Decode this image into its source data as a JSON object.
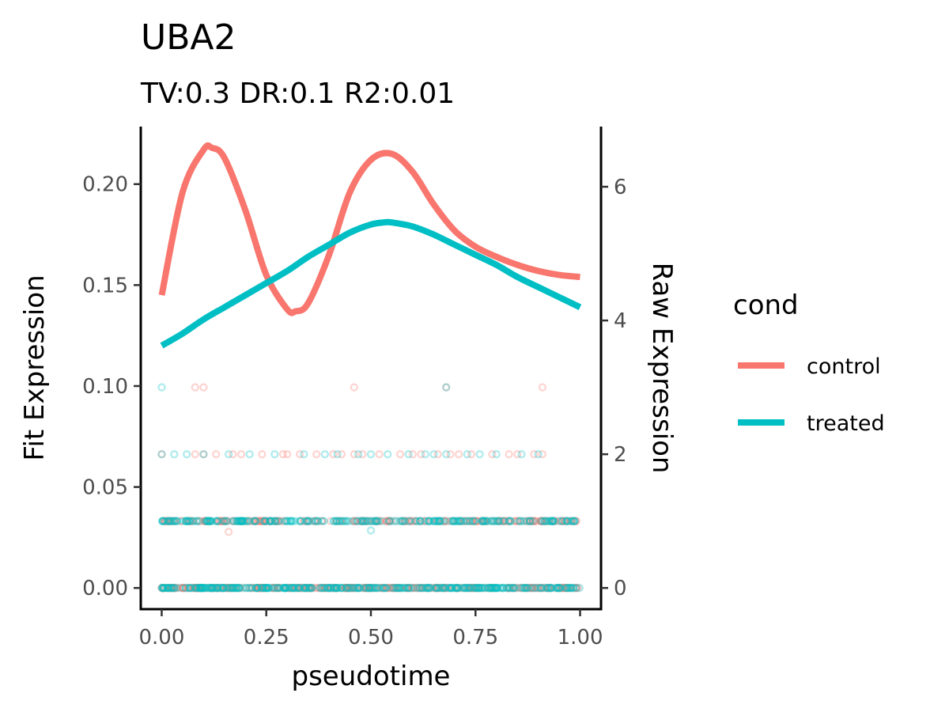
{
  "chart_data": {
    "type": "line",
    "title": "UBA2",
    "subtitle": "TV:0.3 DR:0.1 R2:0.01",
    "xlabel": "pseudotime",
    "ylabel": "Fit Expression",
    "y2label": "Raw Expression",
    "xlim": [
      -0.05,
      1.05
    ],
    "ylim": [
      -0.0105,
      0.2285
    ],
    "y2lim": [
      -0.317,
      6.9
    ],
    "x_ticks": [
      "0.00",
      "0.25",
      "0.50",
      "0.75",
      "1.00"
    ],
    "x_tick_values": [
      0,
      0.25,
      0.5,
      0.75,
      1
    ],
    "y_ticks": [
      "0.00",
      "0.05",
      "0.10",
      "0.15",
      "0.20"
    ],
    "y_tick_values": [
      0,
      0.05,
      0.1,
      0.15,
      0.2
    ],
    "y2_ticks": [
      "0",
      "2",
      "4",
      "6"
    ],
    "y2_tick_values": [
      0,
      2,
      4,
      6
    ],
    "grid": false,
    "legend": {
      "title": "cond",
      "placement": "right"
    },
    "series": [
      {
        "name": "control",
        "color": "#F8766D",
        "x": [
          0,
          0.05,
          0.1,
          0.12,
          0.15,
          0.2,
          0.25,
          0.3,
          0.32,
          0.35,
          0.4,
          0.45,
          0.5,
          0.55,
          0.6,
          0.65,
          0.7,
          0.75,
          0.8,
          0.85,
          0.9,
          0.95,
          1.0
        ],
        "y": [
          0.145,
          0.196,
          0.217,
          0.218,
          0.213,
          0.187,
          0.155,
          0.138,
          0.137,
          0.141,
          0.165,
          0.196,
          0.212,
          0.215,
          0.206,
          0.19,
          0.177,
          0.169,
          0.164,
          0.16,
          0.157,
          0.155,
          0.154
        ]
      },
      {
        "name": "treated",
        "color": "#00BFC4",
        "x": [
          0,
          0.05,
          0.1,
          0.15,
          0.2,
          0.25,
          0.3,
          0.35,
          0.4,
          0.45,
          0.5,
          0.53,
          0.55,
          0.6,
          0.65,
          0.7,
          0.75,
          0.8,
          0.85,
          0.9,
          0.95,
          1.0
        ],
        "y": [
          0.12,
          0.126,
          0.133,
          0.139,
          0.145,
          0.151,
          0.157,
          0.164,
          0.17,
          0.176,
          0.18,
          0.181,
          0.181,
          0.179,
          0.175,
          0.17,
          0.165,
          0.16,
          0.154,
          0.149,
          0.144,
          0.139
        ]
      }
    ],
    "raw_points": {
      "point_opacity": 0.3,
      "levels": [
        {
          "raw": 0,
          "control_x_range": [
            0,
            1
          ],
          "treated_x_range": [
            0,
            1
          ],
          "density": "dense"
        },
        {
          "raw": 1,
          "control_x_range": [
            0,
            1
          ],
          "treated_x_range": [
            0,
            1
          ],
          "density": "dense"
        },
        {
          "raw": 2,
          "control_x": [
            0.0,
            0.08,
            0.1,
            0.13,
            0.17,
            0.19,
            0.24,
            0.29,
            0.3,
            0.33,
            0.37,
            0.41,
            0.43,
            0.46,
            0.48,
            0.52,
            0.57,
            0.6,
            0.62,
            0.66,
            0.69,
            0.71,
            0.74,
            0.79,
            0.83,
            0.85,
            0.89,
            0.91
          ],
          "treated_x": [
            0.0,
            0.03,
            0.06,
            0.1,
            0.16,
            0.21,
            0.27,
            0.34,
            0.39,
            0.42,
            0.47,
            0.5,
            0.54,
            0.59,
            0.63,
            0.65,
            0.68,
            0.73,
            0.76,
            0.8,
            0.86,
            0.9
          ]
        },
        {
          "raw": 3,
          "control_x": [
            0.08,
            0.1,
            0.46,
            0.68,
            0.91
          ],
          "treated_x": [
            0.0,
            0.68
          ]
        }
      ],
      "outliers": [
        {
          "x": 0.16,
          "raw": 0.84,
          "cond": "control"
        },
        {
          "x": 0.5,
          "raw": 0.86,
          "cond": "treated"
        }
      ]
    }
  }
}
